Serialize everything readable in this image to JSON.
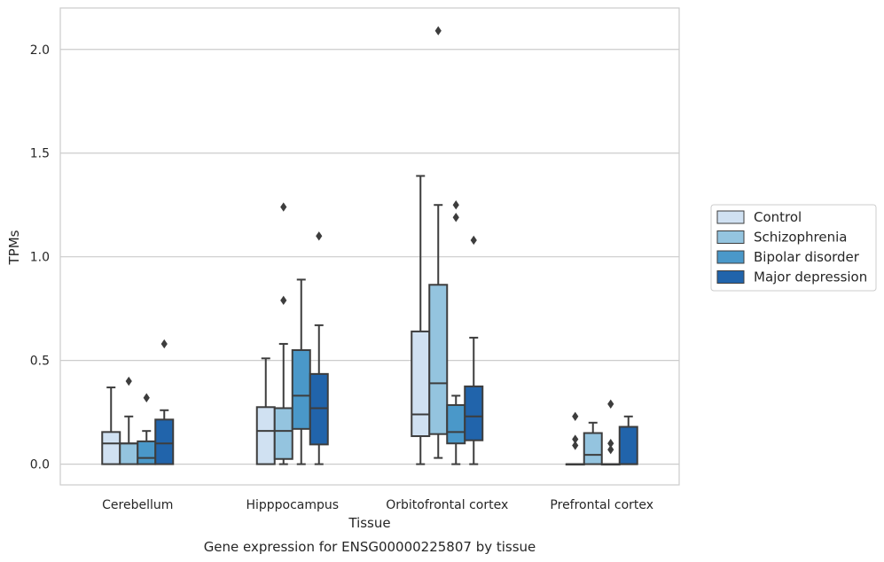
{
  "chart_data": {
    "type": "box",
    "title": "",
    "caption": "Gene expression for ENSG00000225807 by tissue",
    "xlabel": "Tissue",
    "ylabel": "TPMs",
    "ylim": [
      -0.1,
      2.2
    ],
    "yticks": [
      0.0,
      0.5,
      1.0,
      1.5,
      2.0
    ],
    "ytick_labels": [
      "0.0",
      "0.5",
      "1.0",
      "1.5",
      "2.0"
    ],
    "grid": "horizontal",
    "legend_position": "right",
    "categories": [
      "Cerebellum",
      "Hipppocampus",
      "Orbitofrontal cortex",
      "Prefrontal cortex"
    ],
    "series": [
      {
        "name": "Control",
        "color": "#d0e1f2",
        "boxes": [
          {
            "q1": 0.0,
            "median": 0.1,
            "q3": 0.155,
            "whisker_low": 0.0,
            "whisker_high": 0.37,
            "outliers": []
          },
          {
            "q1": 0.0,
            "median": 0.16,
            "q3": 0.275,
            "whisker_low": 0.0,
            "whisker_high": 0.51,
            "outliers": []
          },
          {
            "q1": 0.135,
            "median": 0.24,
            "q3": 0.64,
            "whisker_low": 0.0,
            "whisker_high": 1.39,
            "outliers": []
          },
          {
            "q1": 0.0,
            "median": 0.0,
            "q3": 0.0,
            "whisker_low": 0.0,
            "whisker_high": 0.0,
            "outliers": [
              0.23,
              0.12,
              0.09
            ]
          }
        ]
      },
      {
        "name": "Schizophrenia",
        "color": "#94c4df",
        "boxes": [
          {
            "q1": 0.0,
            "median": 0.1,
            "q3": 0.1,
            "whisker_low": 0.0,
            "whisker_high": 0.23,
            "outliers": [
              0.4
            ]
          },
          {
            "q1": 0.025,
            "median": 0.16,
            "q3": 0.27,
            "whisker_low": 0.0,
            "whisker_high": 0.58,
            "outliers": [
              1.24,
              0.79
            ]
          },
          {
            "q1": 0.145,
            "median": 0.39,
            "q3": 0.865,
            "whisker_low": 0.03,
            "whisker_high": 1.25,
            "outliers": [
              2.09
            ]
          },
          {
            "q1": 0.0,
            "median": 0.045,
            "q3": 0.15,
            "whisker_low": 0.0,
            "whisker_high": 0.2,
            "outliers": []
          }
        ]
      },
      {
        "name": "Bipolar disorder",
        "color": "#4a98c9",
        "boxes": [
          {
            "q1": 0.0,
            "median": 0.03,
            "q3": 0.11,
            "whisker_low": 0.0,
            "whisker_high": 0.16,
            "outliers": [
              0.32
            ]
          },
          {
            "q1": 0.17,
            "median": 0.33,
            "q3": 0.55,
            "whisker_low": 0.0,
            "whisker_high": 0.89,
            "outliers": []
          },
          {
            "q1": 0.1,
            "median": 0.155,
            "q3": 0.285,
            "whisker_low": 0.0,
            "whisker_high": 0.33,
            "outliers": [
              1.25,
              1.19
            ]
          },
          {
            "q1": 0.0,
            "median": 0.0,
            "q3": 0.0,
            "whisker_low": 0.0,
            "whisker_high": 0.0,
            "outliers": [
              0.29,
              0.1,
              0.07
            ]
          }
        ]
      },
      {
        "name": "Major depression",
        "color": "#2164ab",
        "boxes": [
          {
            "q1": 0.0,
            "median": 0.1,
            "q3": 0.215,
            "whisker_low": 0.0,
            "whisker_high": 0.26,
            "outliers": [
              0.58
            ]
          },
          {
            "q1": 0.095,
            "median": 0.27,
            "q3": 0.435,
            "whisker_low": 0.0,
            "whisker_high": 0.67,
            "outliers": [
              1.1
            ]
          },
          {
            "q1": 0.115,
            "median": 0.23,
            "q3": 0.375,
            "whisker_low": 0.0,
            "whisker_high": 0.61,
            "outliers": [
              1.08
            ]
          },
          {
            "q1": 0.0,
            "median": 0.0,
            "q3": 0.18,
            "whisker_low": 0.0,
            "whisker_high": 0.23,
            "outliers": []
          }
        ]
      }
    ]
  }
}
